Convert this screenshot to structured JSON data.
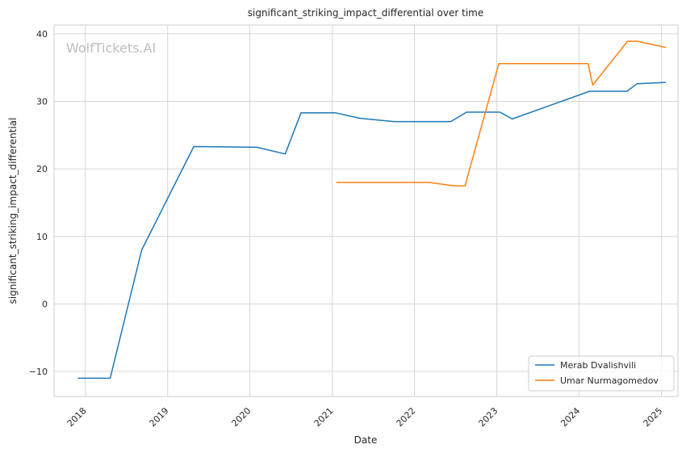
{
  "chart_data": {
    "type": "line",
    "title": "significant_striking_impact_differential over time",
    "xlabel": "Date",
    "ylabel": "significant_striking_impact_differential",
    "watermark": "WolfTickets.AI",
    "x_ticks": [
      "2018",
      "2019",
      "2020",
      "2021",
      "2022",
      "2023",
      "2024",
      "2025"
    ],
    "y_ticks": [
      -10,
      0,
      10,
      20,
      30,
      40
    ],
    "xlim": [
      "2017-08-15",
      "2025-03-15"
    ],
    "ylim": [
      -13.7,
      41.3
    ],
    "grid": true,
    "legend_position": "lower-right",
    "series": [
      {
        "name": "Merab Dvalishvili",
        "color": "#1f77b4",
        "points": [
          [
            "2017-12-01",
            -11.0
          ],
          [
            "2018-04-21",
            -11.0
          ],
          [
            "2018-09-08",
            8.0
          ],
          [
            "2019-04-27",
            23.3
          ],
          [
            "2020-02-01",
            23.2
          ],
          [
            "2020-06-06",
            22.2
          ],
          [
            "2020-08-15",
            28.3
          ],
          [
            "2021-01-15",
            28.3
          ],
          [
            "2021-05-01",
            27.5
          ],
          [
            "2021-10-01",
            27.0
          ],
          [
            "2022-06-11",
            27.0
          ],
          [
            "2022-08-20",
            28.4
          ],
          [
            "2023-01-15",
            28.4
          ],
          [
            "2023-03-11",
            27.4
          ],
          [
            "2024-02-17",
            31.5
          ],
          [
            "2024-08-01",
            31.5
          ],
          [
            "2024-09-14",
            32.6
          ],
          [
            "2025-01-18",
            32.8
          ]
        ]
      },
      {
        "name": "Umar Nurmagomedov",
        "color": "#ff7f0e",
        "points": [
          [
            "2021-01-20",
            18.0
          ],
          [
            "2022-03-05",
            18.0
          ],
          [
            "2022-06-25",
            17.5
          ],
          [
            "2022-08-13",
            17.5
          ],
          [
            "2023-01-10",
            35.6
          ],
          [
            "2024-02-10",
            35.6
          ],
          [
            "2024-03-02",
            32.4
          ],
          [
            "2024-08-03",
            38.9
          ],
          [
            "2024-09-15",
            38.9
          ],
          [
            "2025-01-18",
            38.0
          ]
        ]
      }
    ]
  }
}
